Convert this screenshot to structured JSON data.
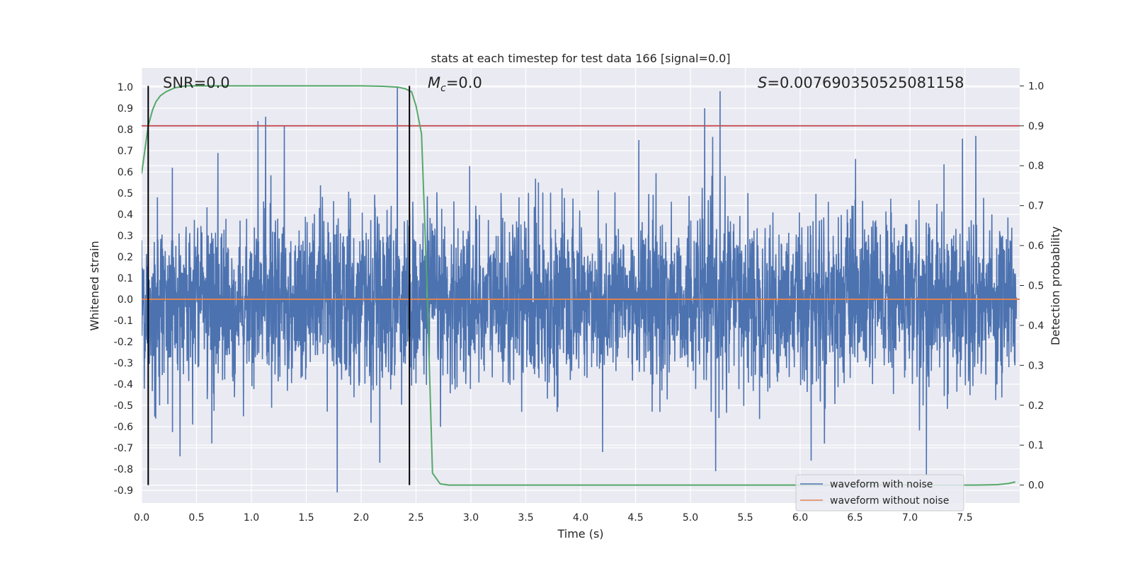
{
  "chart_data": {
    "type": "line",
    "title": "stats at each timestep for test data 166 [signal=0.0]",
    "xlabel": "Time (s)",
    "ylabel": "Whitened strain",
    "y2label": "Detection probability",
    "xlim": [
      0.0,
      8.0
    ],
    "ylim": [
      -0.96,
      1.09
    ],
    "y2lim": [
      -0.045,
      1.045
    ],
    "x_ticks": [
      "0.0",
      "0.5",
      "1.0",
      "1.5",
      "2.0",
      "2.5",
      "3.0",
      "3.5",
      "4.0",
      "4.5",
      "5.0",
      "5.5",
      "6.0",
      "6.5",
      "7.0",
      "7.5"
    ],
    "y_ticks": [
      "-0.9",
      "-0.8",
      "-0.7",
      "-0.6",
      "-0.5",
      "-0.4",
      "-0.3",
      "-0.2",
      "-0.1",
      "0.0",
      "0.1",
      "0.2",
      "0.3",
      "0.4",
      "0.5",
      "0.6",
      "0.7",
      "0.8",
      "0.9",
      "1.0"
    ],
    "y2_ticks": [
      "0.0",
      "0.1",
      "0.2",
      "0.3",
      "0.4",
      "0.5",
      "0.6",
      "0.7",
      "0.8",
      "0.9",
      "1.0"
    ],
    "grid": true,
    "legend_position": "lower-right",
    "annotations": {
      "snr": "SNR=0.0",
      "mc_symbol": "M",
      "mc_subscript": "c",
      "mc_value": "=0.0",
      "s_symbol": "S",
      "s_value": "=0.007690350525081158"
    },
    "vertical_markers_x": [
      0.06,
      2.44
    ],
    "threshold": {
      "axis": "right",
      "value": 0.9,
      "color": "#c44e52"
    },
    "series": [
      {
        "name": "waveform with noise",
        "color": "#4c72b0",
        "axis": "left",
        "description_values": {
          "x_range": [
            0.0,
            7.97
          ],
          "typical_envelope": [
            -0.45,
            0.45
          ],
          "peaks": [
            {
              "x": 2.33,
              "y": 1.0
            },
            {
              "x": 5.27,
              "y": 0.98
            },
            {
              "x": 5.13,
              "y": 0.9
            },
            {
              "x": 1.13,
              "y": 0.86
            },
            {
              "x": 1.06,
              "y": 0.84
            },
            {
              "x": 1.3,
              "y": 0.82
            },
            {
              "x": 7.6,
              "y": 0.77
            },
            {
              "x": 4.53,
              "y": 0.75
            },
            {
              "x": 0.28,
              "y": 0.62
            },
            {
              "x": 7.15,
              "y": -0.83
            },
            {
              "x": 5.23,
              "y": -0.81
            },
            {
              "x": 2.17,
              "y": -0.77
            },
            {
              "x": 0.35,
              "y": -0.74
            },
            {
              "x": 6.1,
              "y": -0.76
            },
            {
              "x": 4.2,
              "y": -0.72
            }
          ]
        }
      },
      {
        "name": "waveform without noise",
        "color": "#dd8452",
        "axis": "left",
        "x": [
          0.0,
          8.0
        ],
        "y": [
          0.0,
          0.0
        ]
      },
      {
        "name": "",
        "color": "#55a868",
        "axis": "right",
        "x": [
          0.0,
          0.03,
          0.06,
          0.1,
          0.13,
          0.17,
          0.22,
          0.3,
          0.4,
          0.6,
          1.0,
          1.5,
          2.0,
          2.2,
          2.33,
          2.4,
          2.46,
          2.5,
          2.55,
          2.6,
          2.65,
          2.72,
          2.8,
          3.0,
          4.0,
          5.0,
          6.0,
          7.0,
          7.6,
          7.8,
          7.9,
          7.96
        ],
        "y": [
          0.78,
          0.84,
          0.9,
          0.94,
          0.96,
          0.975,
          0.985,
          0.995,
          1.0,
          1.0,
          1.0,
          1.0,
          1.0,
          0.999,
          0.997,
          0.993,
          0.985,
          0.95,
          0.88,
          0.5,
          0.03,
          0.003,
          0.0,
          0.0,
          0.0,
          0.0,
          0.0,
          0.0,
          0.0,
          0.001,
          0.004,
          0.008
        ]
      }
    ]
  }
}
